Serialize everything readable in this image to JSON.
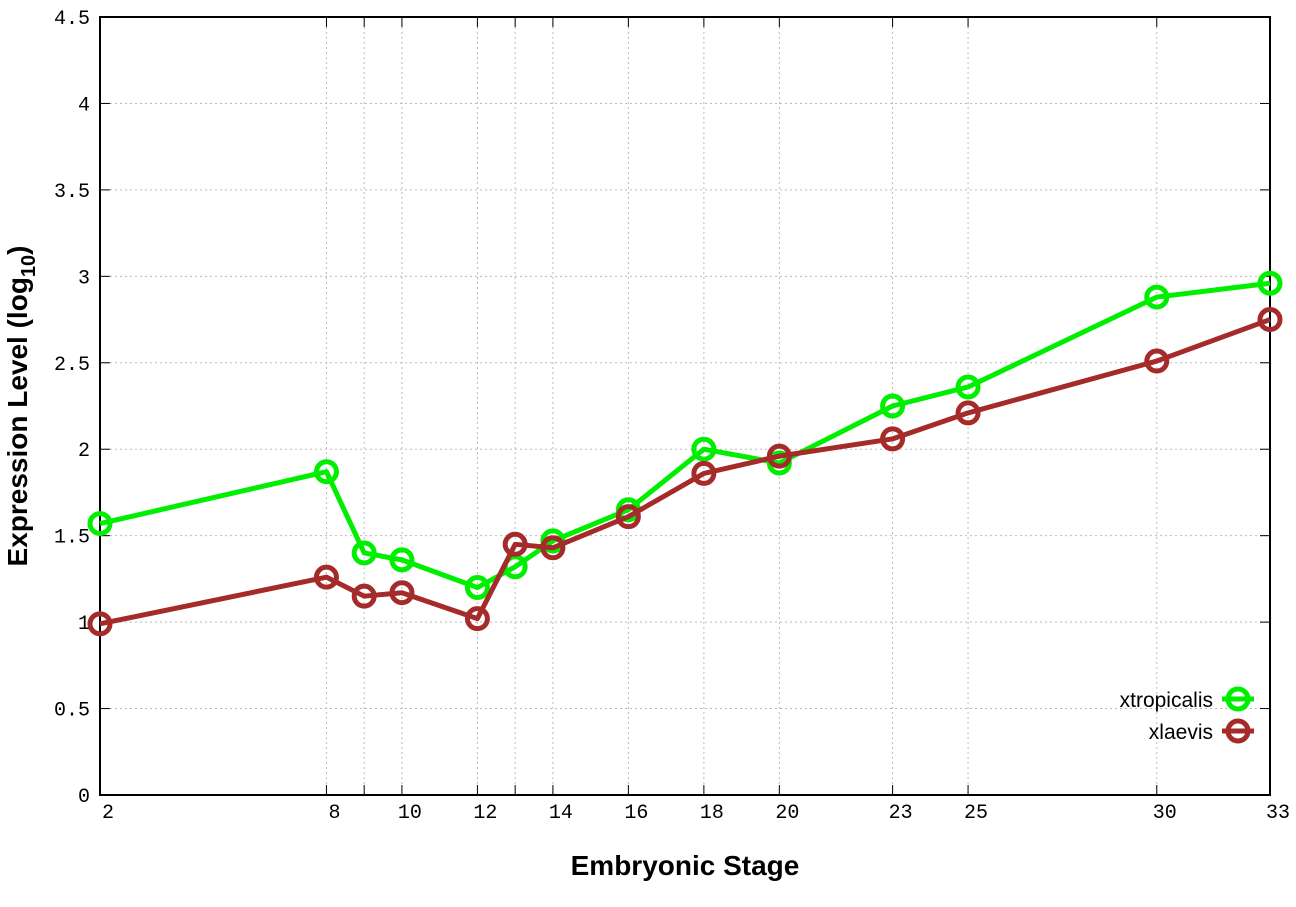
{
  "chart_data": {
    "type": "line",
    "title": "",
    "xlabel": "Embryonic Stage",
    "ylabel_main": "Expression Level (log",
    "ylabel_sub": "10",
    "ylabel_end": ")",
    "xlim": [
      2,
      33
    ],
    "ylim": [
      0,
      4.5
    ],
    "x_ticks": [
      2,
      8,
      10,
      12,
      14,
      16,
      18,
      20,
      23,
      25,
      30,
      33
    ],
    "x_grid": [
      2,
      8,
      9,
      10,
      12,
      13,
      14,
      16,
      18,
      20,
      23,
      25,
      30,
      33
    ],
    "y_ticks": [
      "0",
      "0.5",
      "1",
      "1.5",
      "2",
      "2.5",
      "3",
      "3.5",
      "4",
      "4.5"
    ],
    "grid": true,
    "legend_position": "bottom-right",
    "x": [
      2,
      8,
      9,
      10,
      12,
      13,
      14,
      16,
      18,
      20,
      23,
      25,
      30,
      33
    ],
    "series": [
      {
        "name": "xtropicalis",
        "color": "#00ee00",
        "values": [
          1.57,
          1.87,
          1.4,
          1.36,
          1.2,
          1.32,
          1.47,
          1.65,
          2.0,
          1.92,
          2.25,
          2.36,
          2.88,
          2.96
        ]
      },
      {
        "name": "xlaevis",
        "color": "#a52a2a",
        "values": [
          0.99,
          1.26,
          1.15,
          1.17,
          1.02,
          1.45,
          1.43,
          1.61,
          1.86,
          1.96,
          2.06,
          2.21,
          2.51,
          2.75
        ]
      }
    ]
  }
}
